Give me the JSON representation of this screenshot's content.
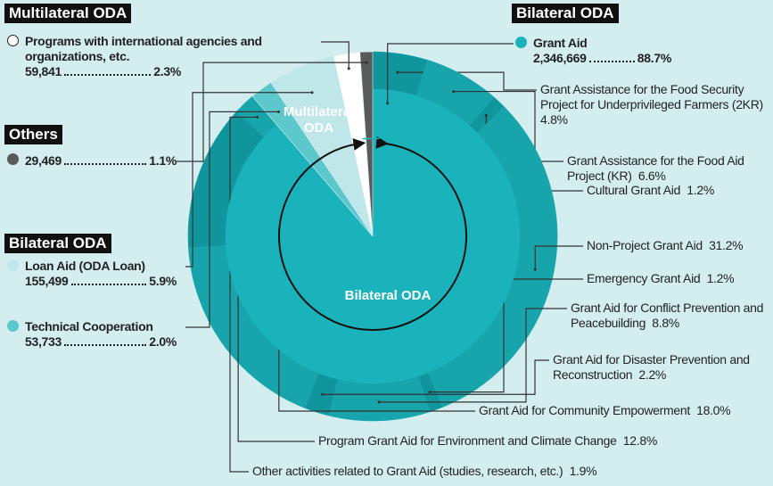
{
  "chart_data": {
    "type": "sunburst",
    "headers": [
      "Multilateral ODA",
      "Bilateral ODA",
      "Bilateral ODA"
    ],
    "center_labels": [
      "Multilateral ODA",
      "Bilateral ODA"
    ],
    "categories": [
      "Grant Aid",
      "Technical Cooperation",
      "Loan Aid (ODA Loan)",
      "Programs with international agencies and organizations, etc.",
      "Others"
    ],
    "colors": [
      "#1bb3bb",
      "#5cc8cc",
      "#bfe6e8",
      "#ffffff",
      "#5a5a5a"
    ],
    "amounts": [
      2346669,
      53733,
      155499,
      59841,
      29469
    ],
    "amount_labels": [
      "2,346,669",
      "53,733",
      "155,499",
      "59,841",
      "29,469"
    ],
    "values": [
      88.7,
      2.0,
      5.9,
      2.3,
      1.1
    ],
    "value_labels": [
      "88.7%",
      "2.0%",
      "5.9%",
      "2.3%",
      "1.1%"
    ],
    "sub_names": [
      "Grant Assistance for the Food Security Project for Underprivileged Farmers (2KR)",
      "Grant Assistance for the Food Aid Project (KR)",
      "Cultural Grant Aid",
      "Non-Project Grant Aid",
      "Emergency Grant Aid",
      "Grant Aid for Conflict Prevention and Peacebuilding",
      "Grant Aid for Disaster Prevention and Reconstruction",
      "Grant Aid for Community Empowerment",
      "Program Grant Aid for Environment and Climate Change",
      "Other activities related to Grant Aid (studies, research, etc.)"
    ],
    "sub_values": [
      4.8,
      6.6,
      1.2,
      31.2,
      1.2,
      8.8,
      2.2,
      18.0,
      12.8,
      1.9
    ],
    "sub_value_labels": [
      "4.8%",
      "6.6%",
      "1.2%",
      "31.2%",
      "1.2%",
      "8.8%",
      "2.2%",
      "18.0%",
      "12.8%",
      "1.9%"
    ],
    "sub_colors": [
      "#0f959b",
      "#17a4aa"
    ]
  }
}
